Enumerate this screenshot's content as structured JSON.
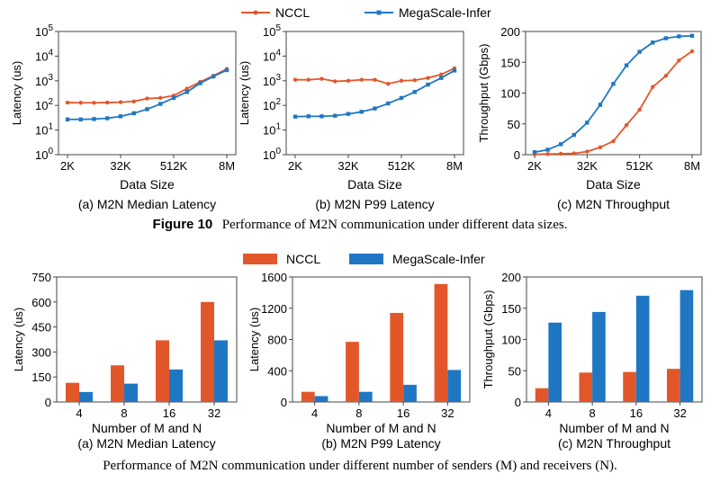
{
  "colors": {
    "nccl": "#e2572a",
    "megascale": "#1f77c4",
    "axis": "#444444",
    "grid": "#dddddd"
  },
  "legend_top": {
    "nccl": "NCCL",
    "megascale": "MegaScale-Infer"
  },
  "legend_bottom": {
    "nccl": "NCCL",
    "megascale": "MegaScale-Infer"
  },
  "figure10": {
    "label": "Figure 10",
    "text": "Performance of M2N communication under different data sizes."
  },
  "figure_bottom": {
    "text": "Performance of M2N communication under different number of senders (M) and receivers (N)."
  },
  "chart_data": [
    {
      "type": "line",
      "subtitle": "(a) M2N Median Latency",
      "xlabel": "Data Size",
      "ylabel": "Latency (us)",
      "yscale": "log",
      "ylim": [
        1,
        100000
      ],
      "ytick_labels": [
        "10^0",
        "10^1",
        "10^2",
        "10^3",
        "10^4",
        "10^5"
      ],
      "xtick_labels": [
        "2K",
        "32K",
        "512K",
        "8M"
      ],
      "x": [
        2,
        4,
        8,
        16,
        32,
        64,
        128,
        256,
        512,
        1024,
        2048,
        4096,
        8192
      ],
      "series": [
        {
          "name": "NCCL",
          "values": [
            130,
            128,
            127,
            130,
            135,
            145,
            190,
            200,
            250,
            480,
            900,
            1600,
            3000
          ]
        },
        {
          "name": "MegaScale-Infer",
          "values": [
            27,
            27,
            28,
            30,
            36,
            48,
            70,
            115,
            200,
            350,
            800,
            1500,
            2700
          ]
        }
      ]
    },
    {
      "type": "line",
      "subtitle": "(b) M2N P99 Latency",
      "xlabel": "Data Size",
      "ylabel": "Latency (us)",
      "yscale": "log",
      "ylim": [
        1,
        100000
      ],
      "ytick_labels": [
        "10^0",
        "10^1",
        "10^2",
        "10^3",
        "10^4",
        "10^5"
      ],
      "xtick_labels": [
        "2K",
        "32K",
        "512K",
        "8M"
      ],
      "x": [
        2,
        4,
        8,
        16,
        32,
        64,
        128,
        256,
        512,
        1024,
        2048,
        4096,
        8192
      ],
      "series": [
        {
          "name": "NCCL",
          "values": [
            1100,
            1100,
            1200,
            950,
            1000,
            1100,
            1100,
            750,
            1000,
            1050,
            1300,
            1800,
            3200
          ]
        },
        {
          "name": "MegaScale-Infer",
          "values": [
            35,
            36,
            36,
            38,
            45,
            55,
            75,
            120,
            200,
            350,
            700,
            1300,
            2600
          ]
        }
      ]
    },
    {
      "type": "line",
      "subtitle": "(c) M2N Throughput",
      "xlabel": "Data Size",
      "ylabel": "Throughput (Gbps)",
      "ylim": [
        0,
        200
      ],
      "yticks": [
        0,
        50,
        100,
        150,
        200
      ],
      "xtick_labels": [
        "2K",
        "32K",
        "512K",
        "8M"
      ],
      "x": [
        2,
        4,
        8,
        16,
        32,
        64,
        128,
        256,
        512,
        1024,
        2048,
        4096,
        8192
      ],
      "series": [
        {
          "name": "NCCL",
          "values": [
            0.5,
            1,
            1.5,
            2,
            5,
            12,
            22,
            48,
            73,
            110,
            128,
            153,
            168
          ]
        },
        {
          "name": "MegaScale-Infer",
          "values": [
            4,
            8,
            17,
            32,
            52,
            81,
            115,
            145,
            167,
            182,
            189,
            192,
            193
          ]
        }
      ]
    },
    {
      "type": "bar",
      "subtitle": "(a) M2N Median Latency",
      "xlabel": "Number of M and N",
      "ylabel": "Latency (us)",
      "ylim": [
        0,
        750
      ],
      "yticks": [
        0,
        150,
        300,
        450,
        600,
        750
      ],
      "categories": [
        "4",
        "8",
        "16",
        "32"
      ],
      "series": [
        {
          "name": "NCCL",
          "values": [
            115,
            220,
            370,
            600
          ]
        },
        {
          "name": "MegaScale-Infer",
          "values": [
            60,
            110,
            195,
            370
          ]
        }
      ]
    },
    {
      "type": "bar",
      "subtitle": "(b) M2N P99 Latency",
      "xlabel": "Number of M and N",
      "ylabel": "Latency (us)",
      "ylim": [
        0,
        1600
      ],
      "yticks": [
        0,
        400,
        800,
        1200,
        1600
      ],
      "categories": [
        "4",
        "8",
        "16",
        "32"
      ],
      "series": [
        {
          "name": "NCCL",
          "values": [
            130,
            770,
            1140,
            1510
          ]
        },
        {
          "name": "MegaScale-Infer",
          "values": [
            75,
            130,
            220,
            410
          ]
        }
      ]
    },
    {
      "type": "bar",
      "subtitle": "(c) M2N Throughput",
      "xlabel": "Number of M and N",
      "ylabel": "Throughput (Gbps)",
      "ylim": [
        0,
        200
      ],
      "yticks": [
        0,
        50,
        100,
        150,
        200
      ],
      "categories": [
        "4",
        "8",
        "16",
        "32"
      ],
      "series": [
        {
          "name": "NCCL",
          "values": [
            22,
            47,
            48,
            53
          ]
        },
        {
          "name": "MegaScale-Infer",
          "values": [
            127,
            144,
            170,
            179
          ]
        }
      ]
    }
  ]
}
